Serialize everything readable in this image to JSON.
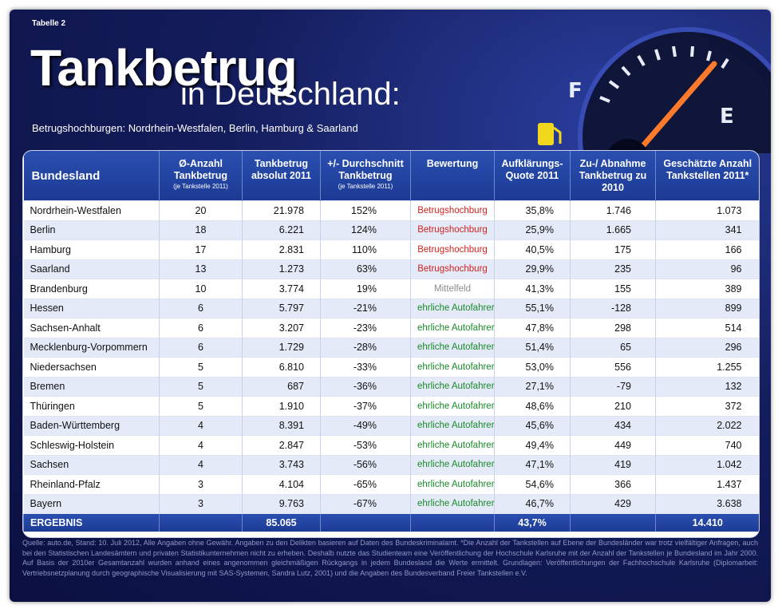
{
  "label": "Tabelle 2",
  "header": {
    "title": "Tankbetrug",
    "subtitle": "in Deutschland:",
    "tagline": "Betrugshochburgen: Nordrhein-Westfalen, Berlin, Hamburg & Saarland"
  },
  "table": {
    "columns": [
      "Bundesland",
      {
        "text": "Ø-Anzahl Tankbetrug",
        "note": "(je Tankstelle 2011)"
      },
      "Tankbetrug absolut 2011",
      {
        "text": "+/- Durchschnitt Tankbetrug",
        "note": "(je Tankstelle 2011)"
      },
      "Bewertung",
      "Aufklärungs-Quote 2011",
      "Zu-/ Abnahme Tankbetrug zu 2010",
      "Geschätzte Anzahl Tankstellen 2011*"
    ],
    "rows": [
      [
        "Nordrhein-Westfalen",
        "20",
        "21.978",
        "152%",
        "Betrugshochburg",
        "35,8%",
        "1.746",
        "1.073"
      ],
      [
        "Berlin",
        "18",
        "6.221",
        "124%",
        "Betrugshochburg",
        "25,9%",
        "1.665",
        "341"
      ],
      [
        "Hamburg",
        "17",
        "2.831",
        "110%",
        "Betrugshochburg",
        "40,5%",
        "175",
        "166"
      ],
      [
        "Saarland",
        "13",
        "1.273",
        "63%",
        "Betrugshochburg",
        "29,9%",
        "235",
        "96"
      ],
      [
        "Brandenburg",
        "10",
        "3.774",
        "19%",
        "Mittelfeld",
        "41,3%",
        "155",
        "389"
      ],
      [
        "Hessen",
        "6",
        "5.797",
        "-21%",
        "ehrliche Autofahrer",
        "55,1%",
        "-128",
        "899"
      ],
      [
        "Sachsen-Anhalt",
        "6",
        "3.207",
        "-23%",
        "ehrliche Autofahrer",
        "47,8%",
        "298",
        "514"
      ],
      [
        "Mecklenburg-Vorpommern",
        "6",
        "1.729",
        "-28%",
        "ehrliche Autofahrer",
        "51,4%",
        "65",
        "296"
      ],
      [
        "Niedersachsen",
        "5",
        "6.810",
        "-33%",
        "ehrliche Autofahrer",
        "53,0%",
        "556",
        "1.255"
      ],
      [
        "Bremen",
        "5",
        "687",
        "-36%",
        "ehrliche Autofahrer",
        "27,1%",
        "-79",
        "132"
      ],
      [
        "Thüringen",
        "5",
        "1.910",
        "-37%",
        "ehrliche Autofahrer",
        "48,6%",
        "210",
        "372"
      ],
      [
        "Baden-Württemberg",
        "4",
        "8.391",
        "-49%",
        "ehrliche Autofahrer",
        "45,6%",
        "434",
        "2.022"
      ],
      [
        "Schleswig-Holstein",
        "4",
        "2.847",
        "-53%",
        "ehrliche Autofahrer",
        "49,4%",
        "449",
        "740"
      ],
      [
        "Sachsen",
        "4",
        "3.743",
        "-56%",
        "ehrliche Autofahrer",
        "47,1%",
        "419",
        "1.042"
      ],
      [
        "Rheinland-Pfalz",
        "3",
        "4.104",
        "-65%",
        "ehrliche Autofahrer",
        "54,6%",
        "366",
        "1.437"
      ],
      [
        "Bayern",
        "3",
        "9.763",
        "-67%",
        "ehrliche Autofahrer",
        "46,7%",
        "429",
        "3.638"
      ]
    ],
    "rating_colors": [
      "#d0231f",
      "#d0231f",
      "#d0231f",
      "#d0231f",
      "#8c8c8c",
      "#1a8a2a",
      "#1a8a2a",
      "#1a8a2a",
      "#1a8a2a",
      "#1a8a2a",
      "#1a8a2a",
      "#1a8a2a",
      "#1a8a2a",
      "#1a8a2a",
      "#1a8a2a",
      "#1a8a2a"
    ],
    "total": {
      "0": "ERGEBNIS",
      "2": "85.065",
      "5": "43,7%",
      "7": "14.410"
    }
  },
  "source": "Quelle: auto.de, Stand: 10. Juli 2012, Alle Angaben ohne Gewähr. Angaben zu den Delikten basieren auf Daten des Bundeskriminalamt. *Die Anzahl der Tankstellen auf Ebene der Bundesländer war trotz vielfältiger Anfragen, auch bei den Statistischen Landesämtern und privaten Statistikunternehmen nicht zu erheben. Deshalb nutzte das Studienteam eine Veröffentlichung der Hochschule Karlsruhe mit der Anzahl der Tankstellen je Bundesland im Jahr 2000. Auf Basis der 2010er Gesamtanzahl wurden anhand eines angenommen gleichmäßigen Rückgangs in jedem Bundesland die Werte ermittelt. Grundlagen: Veröffentlichungen der Fachhochschule Karlsruhe (Diplomarbeit: Vertriebsnetzplanung durch geographische Visualisierung mit SAS-Systemen, Sandra Lutz, 2001) und die Angaben des Bundesverband Freier Tankstellen e.V."
}
